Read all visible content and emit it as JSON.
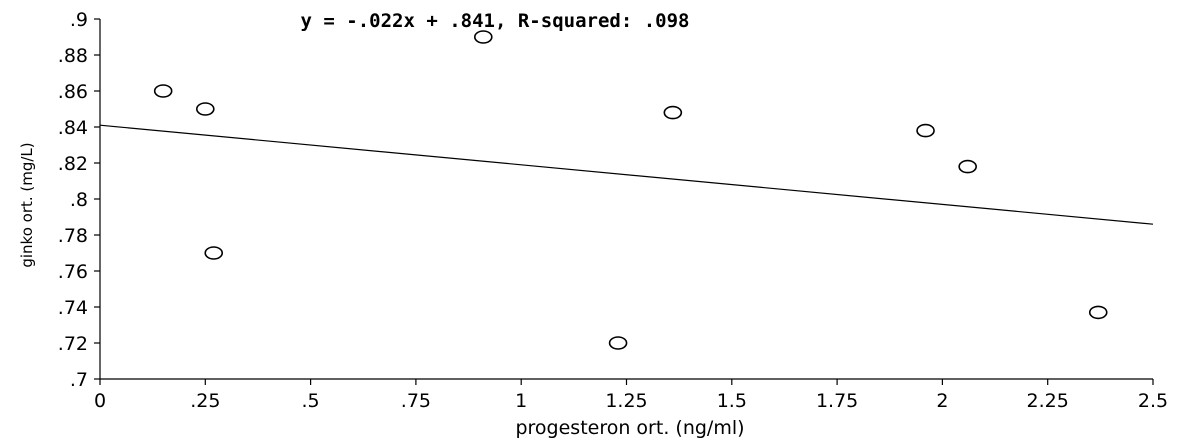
{
  "chart_data": {
    "type": "scatter",
    "title": "y = -.022x + .841, R-squared: .098",
    "xlabel": "progesteron ort. (ng/ml)",
    "ylabel": "ginko ort. (mg/L)",
    "xlim": [
      0,
      2.5
    ],
    "ylim": [
      0.7,
      0.9
    ],
    "x_ticks": [
      "0",
      ".25",
      ".5",
      ".75",
      "1",
      "1.25",
      "1.5",
      "1.75",
      "2",
      "2.25",
      "2.5"
    ],
    "y_ticks": [
      ".7",
      ".72",
      ".74",
      ".76",
      ".78",
      ".8",
      ".82",
      ".84",
      ".86",
      ".88",
      ".9"
    ],
    "grid": false,
    "points": [
      {
        "x": 0.15,
        "y": 0.86
      },
      {
        "x": 0.25,
        "y": 0.85
      },
      {
        "x": 0.27,
        "y": 0.77
      },
      {
        "x": 0.91,
        "y": 0.89
      },
      {
        "x": 1.23,
        "y": 0.72
      },
      {
        "x": 1.36,
        "y": 0.848
      },
      {
        "x": 1.96,
        "y": 0.838
      },
      {
        "x": 2.06,
        "y": 0.818
      },
      {
        "x": 2.37,
        "y": 0.737
      }
    ],
    "fit": {
      "slope": -0.022,
      "intercept": 0.841
    }
  }
}
